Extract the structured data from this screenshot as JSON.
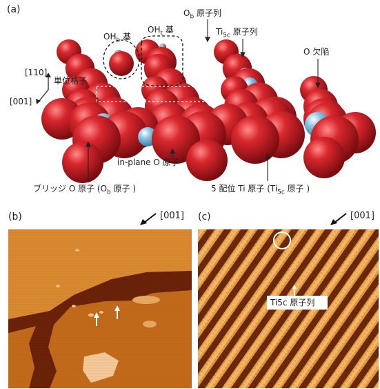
{
  "panels": {
    "a": {
      "letter": "(a)"
    },
    "b": {
      "letter": "(b)",
      "direction": "[001]"
    },
    "c": {
      "letter": "(c)",
      "direction": "[001]",
      "annotation": "Ti5c 原子列"
    }
  },
  "panel_a_labels": {
    "ohb_main": "OH",
    "ohb_sub": "b",
    "ohb_suffix": " 基",
    "oht_main": "OH",
    "oht_sub": "t",
    "oht_suffix": " 基",
    "ob_row_main": "O",
    "ob_row_sub": "b",
    "ob_row_suffix": " 原子列",
    "ti5c_row_main": "Ti",
    "ti5c_row_sub": "5c",
    "ti5c_row_suffix": " 原子列",
    "vacancy": "O 欠陥",
    "axis_110": "[110]",
    "axis_001": "[001]",
    "unit_cell": "単位格子",
    "inplane_o": "in-plane O 原子",
    "bridge_o_prefix": "ブリッジ O 原子 (O",
    "bridge_o_sub": "b",
    "bridge_o_suffix": " 原子 )",
    "ti5c_atom_prefix": "5 配位 Ti 原子 (Ti",
    "ti5c_atom_sub": "5c",
    "ti5c_atom_suffix": " 原子 )"
  },
  "colors": {
    "oxygen": "#c8232a",
    "titanium": "#7ab8d8",
    "stm_dark": "#5a1e06",
    "stm_mid": "#b8560f",
    "stm_light": "#f0b060"
  }
}
